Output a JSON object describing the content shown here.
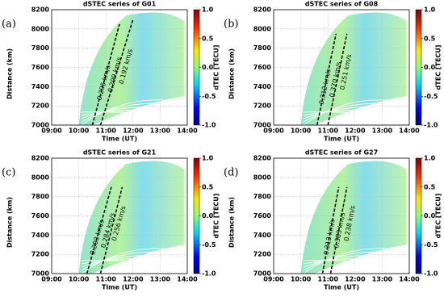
{
  "chart_data": [
    {
      "type": "heatmap",
      "panel_label": "(a)",
      "title": "dSTEC series of G01",
      "x_label": "Time (UT)",
      "y_label": "Distance (km)",
      "xlim": [
        9,
        14
      ],
      "xticks": [
        {
          "value": 9,
          "label": "09:00"
        },
        {
          "value": 10,
          "label": "10:00"
        },
        {
          "value": 11,
          "label": "11:00"
        },
        {
          "value": 12,
          "label": "12:00"
        },
        {
          "value": 13,
          "label": "13:00"
        },
        {
          "value": 14,
          "label": "14:00"
        }
      ],
      "ylim": [
        7000,
        8200
      ],
      "yticks": [
        7000,
        7200,
        7400,
        7600,
        7800,
        8000,
        8200
      ],
      "grid": true,
      "colorbar": {
        "label": "dTEC [TECU]",
        "lim": [
          -1,
          1
        ],
        "ticks": [
          {
            "value": -1,
            "label": "-1.0"
          },
          -0.5,
          {
            "value": 0,
            "label": "0.0"
          },
          0.5,
          {
            "value": 1,
            "label": "1.0"
          }
        ]
      },
      "fronts": [
        {
          "x": [
            10.5,
            11.5
          ],
          "y": [
            7000,
            8050
          ]
        },
        {
          "x": [
            10.8,
            12.0
          ],
          "y": [
            7000,
            8100
          ]
        }
      ],
      "front_labels": [
        "0.295 km/s",
        "0.299 km/s",
        "0.192 km/s"
      ]
    },
    {
      "type": "heatmap",
      "panel_label": "(b)",
      "title": "dSTEC series of G08",
      "x_label": "Time (UT)",
      "y_label": "Distance (km)",
      "xlim": [
        9,
        14
      ],
      "xticks": [
        {
          "value": 9,
          "label": "09:00"
        },
        {
          "value": 10,
          "label": "10:00"
        },
        {
          "value": 11,
          "label": "11:00"
        },
        {
          "value": 12,
          "label": "12:00"
        },
        {
          "value": 13,
          "label": "13:00"
        },
        {
          "value": 14,
          "label": "14:00"
        }
      ],
      "ylim": [
        7000,
        8200
      ],
      "yticks": [
        7000,
        7200,
        7400,
        7600,
        7800,
        8000,
        8200
      ],
      "grid": true,
      "colorbar": {
        "label": "dTEC [TECU]",
        "lim": [
          -1,
          1
        ],
        "ticks": [
          {
            "value": -1,
            "label": "-1.0"
          },
          -0.5,
          {
            "value": 0,
            "label": "0.0"
          },
          0.5,
          {
            "value": 1,
            "label": "1.0"
          }
        ]
      },
      "fronts": [
        {
          "x": [
            10.6,
            11.3
          ],
          "y": [
            7000,
            7950
          ]
        },
        {
          "x": [
            11.0,
            11.7
          ],
          "y": [
            7000,
            7950
          ]
        }
      ],
      "front_labels": [
        "0.312 km/s",
        "0.370 km/s",
        "0.251 km/s"
      ]
    },
    {
      "type": "heatmap",
      "panel_label": "(c)",
      "title": "dSTEC series of G21",
      "x_label": "Time (UT)",
      "y_label": "Distance (km)",
      "xlim": [
        9,
        14
      ],
      "xticks": [
        {
          "value": 9,
          "label": "09:00"
        },
        {
          "value": 10,
          "label": "10:00"
        },
        {
          "value": 11,
          "label": "11:00"
        },
        {
          "value": 12,
          "label": "12:00"
        },
        {
          "value": 13,
          "label": "13:00"
        },
        {
          "value": 14,
          "label": "14:00"
        }
      ],
      "ylim": [
        7000,
        8200
      ],
      "yticks": [
        7000,
        7200,
        7400,
        7600,
        7800,
        8000,
        8200
      ],
      "grid": true,
      "colorbar": {
        "label": "dTEC [TECU]",
        "lim": [
          -1,
          1
        ],
        "ticks": [
          {
            "value": -1,
            "label": "-1.0"
          },
          -0.5,
          {
            "value": 0,
            "label": "0.0"
          },
          0.5,
          {
            "value": 1,
            "label": "1.0"
          }
        ]
      },
      "fronts": [
        {
          "x": [
            10.3,
            11.2
          ],
          "y": [
            7000,
            7900
          ]
        },
        {
          "x": [
            10.8,
            11.6
          ],
          "y": [
            7000,
            7900
          ]
        }
      ],
      "front_labels": [
        "0.303 km/s",
        "0.284 km/s",
        "0.256 km/s"
      ]
    },
    {
      "type": "heatmap",
      "panel_label": "(d)",
      "title": "dSTEC series of G27",
      "x_label": "Time (UT)",
      "y_label": "Distance (km)",
      "xlim": [
        9,
        14
      ],
      "xticks": [
        {
          "value": 9,
          "label": "09:00"
        },
        {
          "value": 10,
          "label": "10:00"
        },
        {
          "value": 11,
          "label": "11:00"
        },
        {
          "value": 12,
          "label": "12:00"
        },
        {
          "value": 13,
          "label": "13:00"
        },
        {
          "value": 14,
          "label": "14:00"
        }
      ],
      "ylim": [
        7000,
        8200
      ],
      "yticks": [
        7000,
        7200,
        7400,
        7600,
        7800,
        8000,
        8200
      ],
      "grid": true,
      "colorbar": {
        "label": "dTEC [TECU]",
        "lim": [
          -1,
          1
        ],
        "ticks": [
          {
            "value": -1,
            "label": "-1.0"
          },
          -0.5,
          {
            "value": 0,
            "label": "0.0"
          },
          0.5,
          {
            "value": 1,
            "label": "1.0"
          }
        ]
      },
      "fronts": [
        {
          "x": [
            10.8,
            11.4
          ],
          "y": [
            7000,
            7900
          ]
        },
        {
          "x": [
            11.1,
            11.7
          ],
          "y": [
            7000,
            7900
          ]
        }
      ],
      "front_labels": [
        "0.313 km/s",
        "0.383 km/s",
        "0.238 km/s"
      ]
    }
  ]
}
